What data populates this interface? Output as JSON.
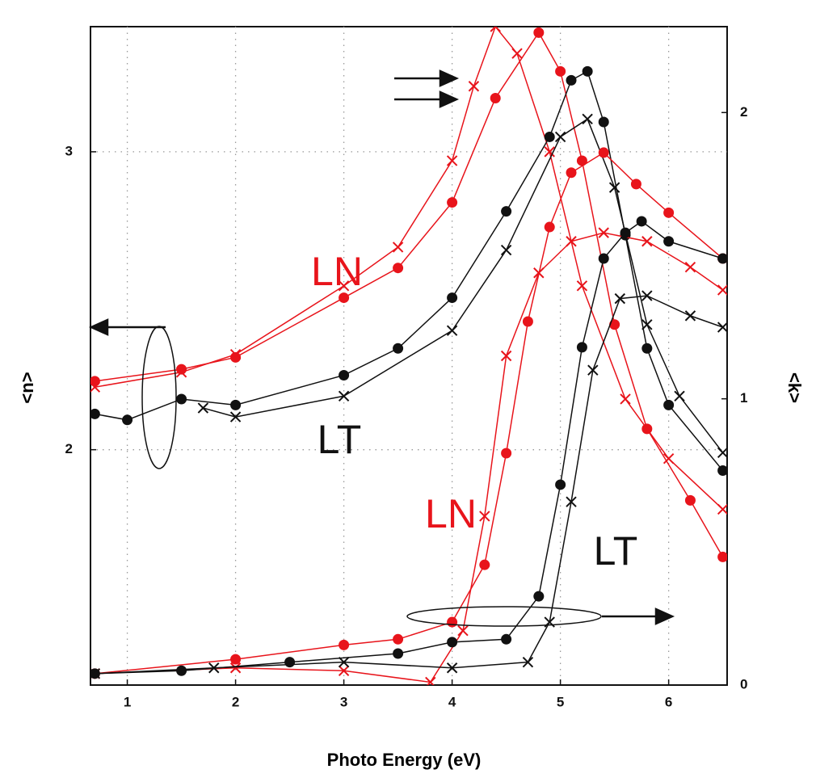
{
  "chart_data": {
    "type": "scatter",
    "x_label": "Photo Energy (eV)",
    "y_label": "<n>",
    "y2_label": "<k>",
    "xlim": [
      0.66,
      6.54
    ],
    "xticks": [
      1,
      2,
      3,
      4,
      5,
      6
    ],
    "ylim": [
      1.21,
      3.42
    ],
    "yticks": [
      2,
      3
    ],
    "y2lim": [
      0,
      2.3
    ],
    "y2ticks": [
      0,
      1,
      2
    ],
    "grid": true,
    "annotations": [
      "LN",
      "LT",
      "LN",
      "LT"
    ],
    "series": [
      {
        "color": "#e8141b",
        "marker": "circle",
        "x": [
          0.7,
          1.5,
          2,
          3,
          3.5,
          4,
          4.4,
          4.8,
          5.0,
          5.2,
          5.5,
          5.8,
          6.2,
          6.5
        ],
        "values": [
          2.23,
          2.27,
          2.31,
          2.51,
          2.61,
          2.83,
          3.18,
          3.4,
          3.27,
          2.97,
          2.42,
          2.07,
          1.83,
          1.64
        ]
      },
      {
        "color": "#e8141b",
        "marker": "cross",
        "x": [
          0.7,
          1.5,
          2,
          3,
          3.5,
          4,
          4.2,
          4.4,
          4.6,
          4.9,
          5.2,
          5.6,
          6.0,
          6.5
        ],
        "values": [
          2.21,
          2.26,
          2.32,
          2.55,
          2.68,
          2.97,
          3.22,
          3.42,
          3.33,
          3.0,
          2.55,
          2.17,
          1.97,
          1.8
        ]
      },
      {
        "color": "#111111",
        "marker": "circle",
        "x": [
          0.7,
          1,
          1.5,
          2,
          3,
          3.5,
          4,
          4.5,
          4.9,
          5.1,
          5.25,
          5.4,
          5.6,
          5.8,
          6.0,
          6.5
        ],
        "values": [
          2.12,
          2.1,
          2.17,
          2.15,
          2.25,
          2.34,
          2.51,
          2.8,
          3.05,
          3.24,
          3.27,
          3.1,
          2.72,
          2.34,
          2.15,
          1.93
        ]
      },
      {
        "color": "#111111",
        "marker": "cross",
        "x": [
          1.7,
          2,
          3,
          4,
          4.5,
          5,
          5.25,
          5.5,
          5.8,
          6.1,
          6.5
        ],
        "values": [
          2.14,
          2.11,
          2.18,
          2.4,
          2.67,
          3.05,
          3.11,
          2.88,
          2.42,
          2.18,
          1.99
        ]
      },
      {
        "color": "#e8141b",
        "marker": "circle",
        "axis": "y2",
        "x": [
          0.7,
          2,
          3,
          3.5,
          4,
          4.3,
          4.5,
          4.7,
          4.9,
          5.1,
          5.4,
          5.7,
          6.0,
          6.5
        ],
        "values": [
          0.04,
          0.09,
          0.14,
          0.16,
          0.22,
          0.42,
          0.81,
          1.27,
          1.6,
          1.79,
          1.86,
          1.75,
          1.65,
          1.49
        ]
      },
      {
        "color": "#e8141b",
        "marker": "cross",
        "axis": "y2",
        "x": [
          0.7,
          2,
          3,
          3.8,
          4.1,
          4.3,
          4.5,
          4.8,
          5.1,
          5.4,
          5.8,
          6.2,
          6.5
        ],
        "values": [
          0.04,
          0.06,
          0.05,
          0.01,
          0.19,
          0.59,
          1.15,
          1.44,
          1.55,
          1.58,
          1.55,
          1.46,
          1.38
        ]
      },
      {
        "color": "#111111",
        "marker": "circle",
        "axis": "y2",
        "x": [
          0.7,
          1.5,
          2.5,
          3.5,
          4.0,
          4.5,
          4.8,
          5.0,
          5.2,
          5.4,
          5.6,
          5.75,
          6.0,
          6.5
        ],
        "values": [
          0.04,
          0.05,
          0.08,
          0.11,
          0.15,
          0.16,
          0.31,
          0.7,
          1.18,
          1.49,
          1.58,
          1.62,
          1.55,
          1.49
        ]
      },
      {
        "color": "#111111",
        "marker": "cross",
        "axis": "y2",
        "x": [
          0.7,
          1.8,
          3,
          4.0,
          4.7,
          4.9,
          5.1,
          5.3,
          5.55,
          5.8,
          6.2,
          6.5
        ],
        "values": [
          0.04,
          0.06,
          0.08,
          0.06,
          0.08,
          0.22,
          0.64,
          1.1,
          1.35,
          1.36,
          1.29,
          1.25
        ]
      }
    ]
  }
}
